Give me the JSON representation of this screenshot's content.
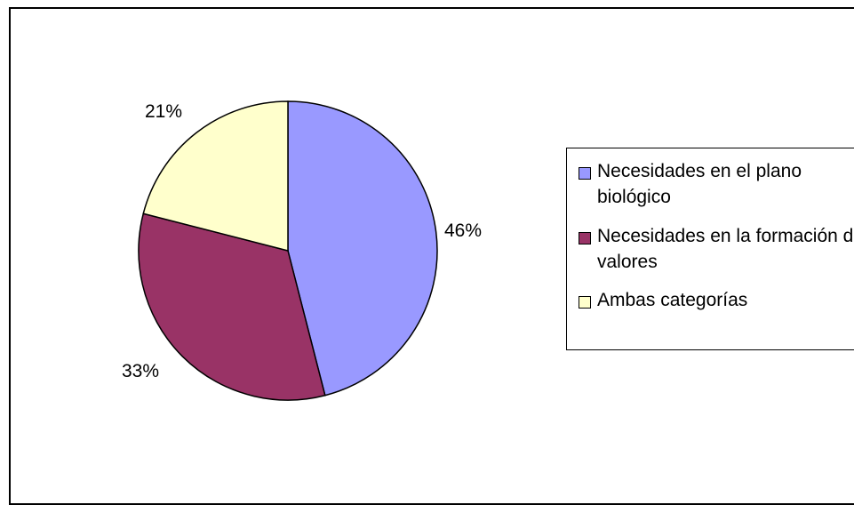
{
  "chart_data": {
    "type": "pie",
    "title": "",
    "categories": [
      "Necesidades en el plano biológico",
      "Necesidades en la formación de valores",
      "Ambas categorías"
    ],
    "values": [
      46,
      33,
      21
    ],
    "labels": [
      "46%",
      "33%",
      "21%"
    ],
    "colors": [
      "#9999ff",
      "#993366",
      "#ffffcc"
    ],
    "start_angle": "top, clockwise",
    "legend_placement": "right"
  },
  "legend": {
    "items": [
      {
        "label": "Necesidades en el plano biológico",
        "color": "#9999ff"
      },
      {
        "label": "Necesidades en la formación de valores",
        "color": "#993366"
      },
      {
        "label": "Ambas categorías",
        "color": "#ffffcc"
      }
    ]
  }
}
